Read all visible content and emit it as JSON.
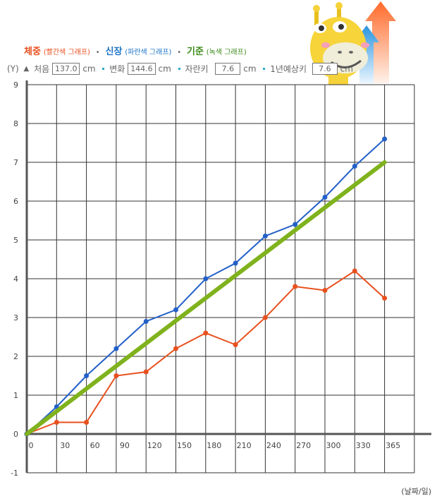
{
  "legend": {
    "weight_label": "체중",
    "weight_note": "(빨간색 그래프)",
    "height_label": "신장",
    "height_note": "(파란색 그래프)",
    "standard_label": "기준",
    "standard_note": "(녹색 그래프)",
    "separator": "•"
  },
  "info": {
    "y_unit": "(Y)",
    "start_label": "처음",
    "start_value": "137.0",
    "change_label": "변화",
    "change_value": "144.6",
    "grown_label": "자란키",
    "grown_value": "7.6",
    "expected_label": "1년예상키",
    "expected_value": "7.6",
    "unit": "cm"
  },
  "colors": {
    "weight": "#e8501e",
    "height": "#2360c8",
    "standard": "#7fb21c",
    "grid": "#333333",
    "axis": "#555555"
  },
  "chart_data": {
    "type": "line",
    "xlabel": "(날짜/일)",
    "x_ticks": [
      "0",
      "30",
      "60",
      "90",
      "120",
      "150",
      "180",
      "210",
      "240",
      "270",
      "300",
      "330",
      "365"
    ],
    "y_ticks": [
      "-1",
      "0",
      "1",
      "2",
      "3",
      "4",
      "5",
      "6",
      "7",
      "8",
      "9"
    ],
    "ylim": [
      -1,
      9
    ],
    "grid": true,
    "series": [
      {
        "name": "체중",
        "color": "#e8501e",
        "x": [
          0,
          30,
          60,
          90,
          120,
          150,
          180,
          210,
          240,
          270,
          300,
          330,
          365
        ],
        "values": [
          0,
          0.3,
          0.3,
          1.5,
          1.6,
          2.2,
          2.6,
          2.3,
          3.0,
          3.8,
          3.7,
          4.2,
          3.5
        ]
      },
      {
        "name": "신장",
        "color": "#2360c8",
        "x": [
          0,
          30,
          60,
          90,
          120,
          150,
          180,
          210,
          240,
          270,
          300,
          330,
          365
        ],
        "values": [
          0,
          0.7,
          1.5,
          2.2,
          2.9,
          3.2,
          4.0,
          4.4,
          5.1,
          5.4,
          6.1,
          6.9,
          7.6
        ]
      },
      {
        "name": "기준",
        "color": "#7fb21c",
        "x": [
          0,
          365
        ],
        "values": [
          0,
          7.0
        ]
      }
    ]
  }
}
